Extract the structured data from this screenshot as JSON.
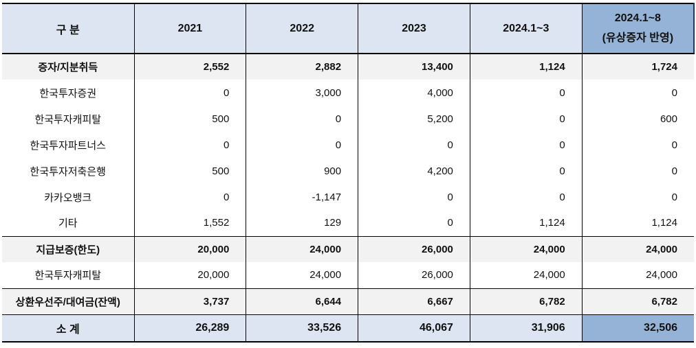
{
  "colors": {
    "header_fill": "#dce5f1",
    "highlight_fill": "#95b3d7",
    "group_row_fill": "#f2f2f2",
    "total_row_fill": "#dce5f1",
    "border": "#000000"
  },
  "table": {
    "header": {
      "col0": "구 분",
      "col1": "2021",
      "col2": "2022",
      "col3": "2023",
      "col4": "2024.1~3",
      "col5_line1": "2024.1~8",
      "col5_line2": "(유상증자 반영)"
    },
    "rows": [
      {
        "label": "증자/지분취득",
        "v1": "2,552",
        "v2": "2,882",
        "v3": "13,400",
        "v4": "1,124",
        "v5": "1,724"
      },
      {
        "label": "한국투자증권",
        "v1": "0",
        "v2": "3,000",
        "v3": "4,000",
        "v4": "0",
        "v5": "0"
      },
      {
        "label": "한국투자캐피탈",
        "v1": "500",
        "v2": "0",
        "v3": "5,200",
        "v4": "0",
        "v5": "600"
      },
      {
        "label": "한국투자파트너스",
        "v1": "0",
        "v2": "0",
        "v3": "0",
        "v4": "0",
        "v5": "0"
      },
      {
        "label": "한국투자저축은행",
        "v1": "500",
        "v2": "900",
        "v3": "4,200",
        "v4": "0",
        "v5": "0"
      },
      {
        "label": "카카오뱅크",
        "v1": "0",
        "v2": "-1,147",
        "v3": "0",
        "v4": "0",
        "v5": "0"
      },
      {
        "label": "기타",
        "v1": "1,552",
        "v2": "129",
        "v3": "0",
        "v4": "1,124",
        "v5": "1,124"
      },
      {
        "label": "지급보증(한도)",
        "v1": "20,000",
        "v2": "24,000",
        "v3": "26,000",
        "v4": "24,000",
        "v5": "24,000"
      },
      {
        "label": "한국투자캐피탈",
        "v1": "20,000",
        "v2": "24,000",
        "v3": "26,000",
        "v4": "24,000",
        "v5": "24,000"
      },
      {
        "label": "상환우선주/대여금(잔액)",
        "v1": "3,737",
        "v2": "6,644",
        "v3": "6,667",
        "v4": "6,782",
        "v5": "6,782"
      },
      {
        "label": "소 계",
        "v1": "26,289",
        "v2": "33,526",
        "v3": "46,067",
        "v4": "31,906",
        "v5": "32,506"
      }
    ]
  }
}
